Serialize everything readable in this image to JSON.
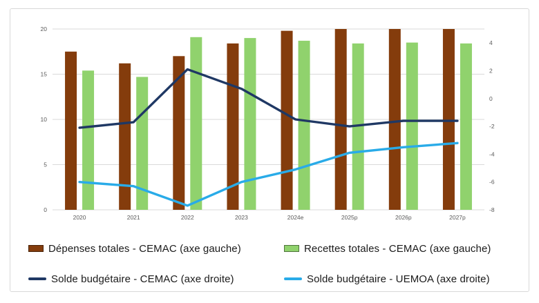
{
  "page": {
    "background": "#ffffff",
    "frame_border_color": "#d8d8d8"
  },
  "chart_data": {
    "type": "combo-bar-line",
    "title": "",
    "categories": [
      "2020",
      "2021",
      "2022",
      "2023",
      "2024e",
      "2025p",
      "2026p",
      "2027p"
    ],
    "series": [
      {
        "name": "Dépenses totales - CEMAC (axe gauche)",
        "type": "bar",
        "axis": "left",
        "color": "#843C0C",
        "values": [
          17.5,
          16.2,
          17.0,
          18.4,
          19.8,
          20.0,
          20.0,
          20.0
        ]
      },
      {
        "name": "Recettes totales - CEMAC (axe gauche)",
        "type": "bar",
        "axis": "left",
        "color": "#90D26D",
        "values": [
          15.4,
          14.7,
          19.1,
          19.0,
          18.7,
          18.4,
          18.5,
          18.4
        ]
      },
      {
        "name": "Solde budgétaire - CEMAC (axe droite)",
        "type": "line",
        "axis": "right",
        "color": "#1F3864",
        "values": [
          -2.1,
          -1.7,
          2.1,
          0.7,
          -1.5,
          -2.0,
          -1.6,
          -1.6
        ]
      },
      {
        "name": "Solde budgétaire - UEMOA (axe droite)",
        "type": "line",
        "axis": "right",
        "color": "#29ABE8",
        "values": [
          -6.0,
          -6.3,
          -7.7,
          -6.0,
          -5.1,
          -3.9,
          -3.5,
          -3.2
        ]
      }
    ],
    "left_axis": {
      "min": 0,
      "max": 20,
      "ticks": [
        0,
        5,
        10,
        15,
        20
      ]
    },
    "right_axis": {
      "min": -8,
      "max": 5,
      "ticks": [
        4,
        2,
        0,
        -2,
        -4,
        -6,
        -8
      ]
    },
    "grid": true,
    "gridline_color": "#d9d9d9",
    "tick_color": "#595959",
    "legend_position": "bottom"
  }
}
